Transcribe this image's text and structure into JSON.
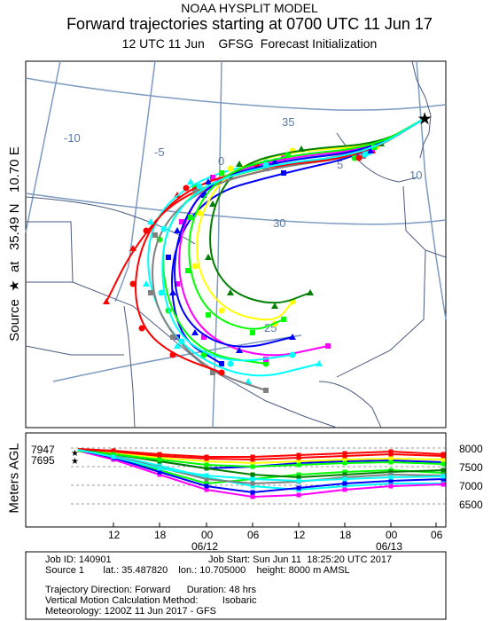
{
  "header": {
    "model": "NOAA HYSPLIT MODEL",
    "title": "Forward trajectories starting at 0700 UTC 11 Jun 17",
    "subtitle": "12 UTC 11 Jun    GFSG  Forecast Initialization"
  },
  "side_labels": {
    "source": "Source  ★  at   35.49 N   10.70 E",
    "agl": "Meters AGL"
  },
  "map": {
    "source_lat": 35.49,
    "source_lon": 10.7,
    "grid_labels": {
      "longitudes": [
        "-10",
        "-5",
        "0",
        "5",
        "10"
      ],
      "latitudes": [
        "35",
        "30",
        "25"
      ]
    }
  },
  "height_panel": {
    "start_labels": [
      "7947",
      "7695"
    ],
    "y_ticks": [
      "8000",
      "7500",
      "7000",
      "6500"
    ],
    "x_ticks": [
      "12",
      "18",
      "00",
      "06",
      "12",
      "18",
      "00",
      "06"
    ],
    "date_labels": [
      "06/12",
      "06/13"
    ]
  },
  "info": {
    "job_id": "Job ID: 140901",
    "job_start": "Job Start: Sun Jun 11  18:25:20 UTC 2017",
    "source": "Source 1       lat.: 35.487820    lon.: 10.705000    height: 8000 m AMSL",
    "direction": "Trajectory Direction: Forward      Duration: 48 hrs",
    "vertical": "Vertical Motion Calculation Method:         Isobaric",
    "meteorology": "Meteorology: 1200Z 11 Jun 2017 - GFS"
  },
  "colors": {
    "grid": "#7d9ac0",
    "trajectories": [
      "#ff0000",
      "#0000ff",
      "#00ff00",
      "#00ffff",
      "#ff00ff",
      "#ffff00",
      "#008000",
      "#808080"
    ]
  }
}
